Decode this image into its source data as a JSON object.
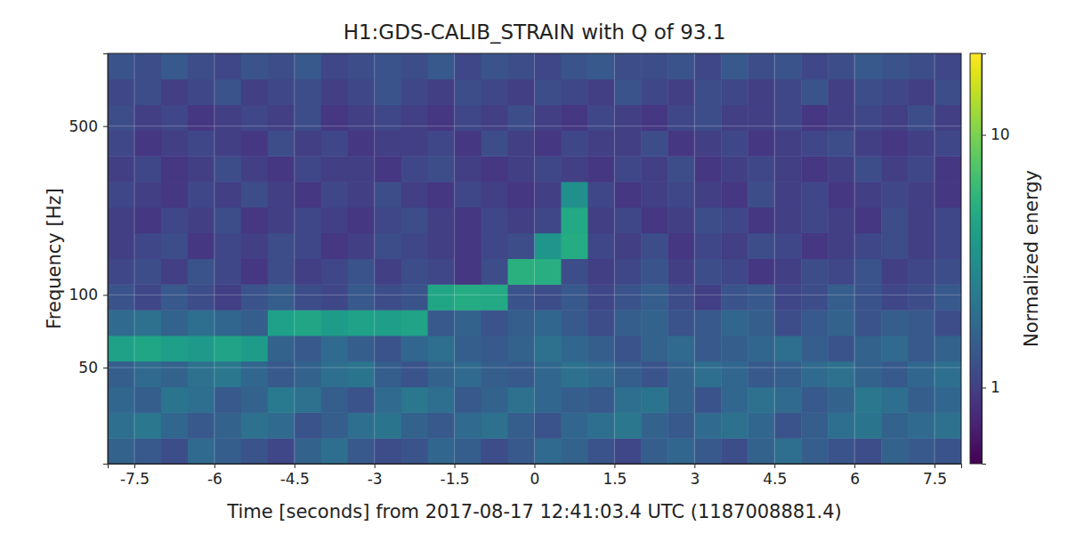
{
  "chart_data": {
    "type": "heatmap",
    "title": "H1:GDS-CALIB_STRAIN with Q of 93.1",
    "x_label": "Time [seconds] from 2017-08-17 12:41:03.4 UTC (1187008881.4)",
    "y_label": "Frequency [Hz]",
    "xlim": [
      -8,
      8
    ],
    "ylim": [
      20,
      1000
    ],
    "log": "y",
    "grid": true,
    "xticks": [
      -7.5,
      -6,
      -4.5,
      -3,
      -1.5,
      0,
      1.5,
      3,
      4.5,
      6,
      7.5
    ],
    "yticks": [
      50,
      100,
      500
    ],
    "color": "viridis",
    "colorbar_label": "Normalized energy",
    "color_range": [
      0.5,
      21
    ],
    "color_ticks": [
      1,
      10
    ],
    "x_edges": [
      -8,
      -7.5,
      -7,
      -6.5,
      -6,
      -5.5,
      -5,
      -4.5,
      -4,
      -3.5,
      -3,
      -2.5,
      -2,
      -1.5,
      -1,
      -0.5,
      0,
      0.5,
      1,
      1.5,
      2,
      2.5,
      3,
      3.5,
      4,
      4.5,
      5,
      5.5,
      6,
      6.5,
      7,
      7.5,
      8
    ],
    "y_edges": [
      20,
      25.5,
      32.6,
      41.6,
      53.2,
      67.9,
      86.7,
      110.7,
      141.4,
      180.6,
      230.6,
      294.5,
      376,
      480,
      613,
      783,
      1000
    ],
    "cells": [
      [
        1.6,
        1.4,
        1.2,
        1.8,
        1.5,
        1.3,
        1.1,
        1.6,
        1.9,
        1.4,
        1.2,
        1.3,
        1.7,
        1.5,
        1.2,
        1.4,
        1.8,
        1.6,
        1.3,
        1.1,
        1.5,
        1.7,
        1.4,
        1.2,
        1.6,
        1.9,
        1.5,
        1.3,
        1.2,
        1.6,
        1.4,
        1.3
      ],
      [
        1.9,
        2.2,
        1.7,
        1.4,
        1.6,
        2.0,
        1.8,
        1.3,
        1.5,
        1.9,
        2.1,
        1.6,
        1.4,
        1.8,
        2.0,
        1.5,
        1.3,
        1.7,
        1.9,
        2.2,
        1.6,
        1.4,
        1.8,
        2.0,
        1.7,
        1.3,
        1.5,
        1.9,
        2.1,
        1.6,
        1.8,
        2.0
      ],
      [
        1.7,
        1.5,
        2.1,
        1.9,
        1.4,
        1.6,
        2.3,
        2.0,
        1.5,
        1.3,
        1.8,
        2.2,
        1.9,
        1.4,
        1.6,
        2.0,
        1.7,
        1.5,
        1.4,
        1.9,
        2.1,
        1.6,
        1.3,
        1.7,
        2.0,
        1.8,
        1.4,
        1.6,
        2.2,
        1.9,
        1.5,
        1.7
      ],
      [
        1.5,
        1.8,
        1.6,
        2.0,
        2.2,
        1.7,
        1.4,
        1.6,
        1.9,
        2.1,
        1.5,
        1.3,
        1.6,
        1.8,
        1.5,
        1.4,
        1.7,
        2.0,
        1.8,
        1.5,
        1.3,
        1.6,
        1.9,
        1.7,
        1.4,
        1.5,
        1.8,
        2.0,
        1.6,
        1.4,
        1.7,
        1.9
      ],
      [
        4.2,
        4.6,
        4.0,
        3.8,
        4.4,
        3.9,
        1.6,
        1.4,
        1.8,
        1.5,
        1.3,
        1.7,
        1.9,
        1.5,
        1.4,
        1.6,
        2.0,
        1.7,
        1.5,
        1.3,
        1.6,
        1.8,
        1.4,
        1.5,
        1.7,
        1.9,
        1.5,
        1.3,
        1.6,
        1.8,
        1.4,
        1.6
      ],
      [
        1.8,
        2.0,
        1.6,
        1.9,
        1.7,
        1.5,
        4.1,
        4.5,
        3.9,
        4.3,
        4.0,
        4.4,
        1.4,
        1.6,
        1.3,
        1.5,
        1.7,
        1.4,
        1.2,
        1.5,
        1.6,
        1.3,
        1.4,
        1.7,
        1.5,
        1.2,
        1.4,
        1.6,
        1.3,
        1.5,
        1.4,
        1.2
      ],
      [
        1.3,
        1.1,
        1.4,
        1.2,
        1.0,
        1.3,
        1.5,
        1.2,
        1.1,
        1.4,
        1.2,
        1.3,
        4.6,
        5.0,
        4.8,
        1.3,
        1.2,
        1.4,
        1.1,
        1.3,
        1.5,
        1.2,
        1.0,
        1.3,
        1.4,
        1.1,
        1.2,
        1.5,
        1.3,
        1.1,
        1.2,
        1.4
      ],
      [
        1.1,
        1.2,
        1.0,
        1.3,
        1.1,
        0.9,
        1.2,
        1.0,
        1.1,
        1.3,
        1.0,
        1.2,
        1.1,
        0.9,
        1.2,
        5.4,
        5.2,
        1.2,
        1.0,
        1.1,
        1.3,
        1.0,
        1.2,
        1.1,
        0.9,
        1.0,
        1.2,
        1.1,
        1.3,
        1.0,
        1.1,
        1.2
      ],
      [
        1.0,
        1.1,
        1.2,
        0.9,
        1.1,
        1.0,
        1.2,
        1.1,
        0.9,
        1.0,
        1.2,
        1.1,
        1.0,
        0.9,
        1.1,
        1.2,
        3.5,
        5.0,
        1.1,
        1.0,
        1.2,
        0.9,
        1.1,
        1.0,
        1.2,
        1.1,
        0.9,
        1.0,
        1.1,
        1.2,
        1.0,
        1.1
      ],
      [
        1.0,
        0.9,
        1.1,
        1.0,
        1.2,
        0.9,
        1.0,
        1.1,
        1.0,
        0.9,
        1.1,
        1.2,
        1.0,
        0.9,
        1.1,
        1.0,
        1.1,
        4.8,
        1.0,
        1.1,
        0.9,
        1.0,
        1.2,
        1.1,
        0.9,
        1.0,
        1.1,
        1.0,
        0.9,
        1.2,
        1.0,
        1.1
      ],
      [
        1.1,
        1.0,
        0.9,
        1.1,
        1.0,
        1.2,
        1.0,
        0.9,
        1.1,
        1.0,
        1.2,
        1.0,
        0.9,
        1.1,
        1.0,
        0.9,
        1.0,
        3.2,
        1.1,
        0.9,
        1.0,
        1.1,
        1.0,
        0.9,
        1.2,
        1.0,
        1.1,
        0.9,
        1.0,
        1.1,
        1.0,
        0.9
      ],
      [
        1.0,
        1.1,
        0.9,
        1.0,
        1.2,
        1.0,
        0.9,
        1.1,
        1.0,
        1.0,
        0.9,
        1.1,
        1.2,
        1.0,
        0.9,
        1.0,
        1.1,
        1.0,
        0.9,
        1.1,
        1.0,
        1.2,
        0.9,
        1.0,
        1.1,
        1.0,
        0.9,
        1.0,
        1.2,
        1.0,
        1.1,
        0.9
      ],
      [
        1.1,
        0.9,
        1.0,
        1.1,
        1.0,
        0.9,
        1.2,
        1.0,
        1.1,
        0.9,
        1.0,
        1.0,
        1.1,
        0.9,
        1.2,
        1.0,
        0.9,
        1.1,
        1.0,
        1.0,
        1.2,
        0.9,
        1.0,
        1.1,
        0.9,
        1.0,
        1.1,
        1.2,
        1.0,
        0.9,
        1.0,
        1.1
      ],
      [
        1.2,
        1.0,
        1.1,
        0.9,
        1.0,
        1.1,
        1.0,
        1.2,
        0.9,
        1.0,
        1.1,
        1.0,
        0.9,
        1.1,
        1.0,
        1.2,
        1.0,
        0.9,
        1.1,
        1.0,
        0.9,
        1.1,
        1.2,
        1.0,
        1.0,
        1.1,
        0.9,
        1.0,
        1.1,
        1.0,
        1.2,
        1.0
      ],
      [
        1.1,
        1.2,
        1.0,
        1.1,
        1.3,
        1.0,
        1.1,
        1.2,
        1.0,
        1.1,
        1.3,
        1.1,
        1.0,
        1.2,
        1.1,
        1.0,
        1.2,
        1.1,
        1.0,
        1.3,
        1.1,
        1.0,
        1.2,
        1.1,
        1.0,
        1.1,
        1.3,
        1.0,
        1.2,
        1.1,
        1.0,
        1.2
      ],
      [
        1.3,
        1.2,
        1.4,
        1.2,
        1.1,
        1.3,
        1.2,
        1.4,
        1.1,
        1.2,
        1.3,
        1.2,
        1.4,
        1.1,
        1.3,
        1.2,
        1.1,
        1.3,
        1.4,
        1.2,
        1.2,
        1.3,
        1.1,
        1.4,
        1.2,
        1.3,
        1.1,
        1.2,
        1.4,
        1.3,
        1.2,
        1.1
      ]
    ]
  }
}
